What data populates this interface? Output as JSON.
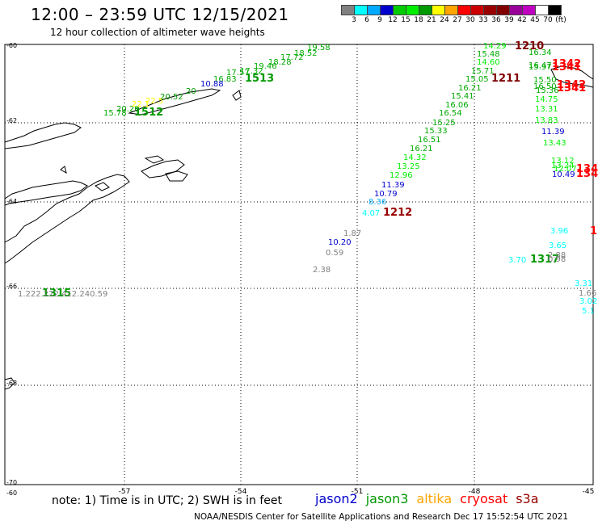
{
  "header": {
    "title": "12:00 – 23:59 UTC 12/15/2021",
    "subtitle": "12 hour collection of altimeter wave heights"
  },
  "color_scale": {
    "colors": [
      "#808080",
      "#00ffff",
      "#00aaff",
      "#0000cc",
      "#00cc00",
      "#00ee00",
      "#009900",
      "#ffff00",
      "#ffa500",
      "#ff0000",
      "#cc0000",
      "#990000",
      "#800000",
      "#990099",
      "#c000c0",
      "#ffffff",
      "#000000"
    ],
    "labels": [
      "3",
      "6",
      "9",
      "12",
      "15",
      "18",
      "21",
      "24",
      "27",
      "30",
      "33",
      "36",
      "39",
      "42",
      "45",
      "70",
      "(ft)"
    ]
  },
  "axes": {
    "lon_labels": [
      "-57",
      "-54",
      "-51",
      "-48",
      "-45"
    ],
    "lat_labels": [
      "-60",
      "-62",
      "-64",
      "-66",
      "-68",
      "-70"
    ],
    "corner_label": "-60"
  },
  "track_labels": [
    {
      "text": "1210",
      "color": "#800000"
    },
    {
      "text": "1211",
      "color": "#800000"
    },
    {
      "text": "1212",
      "color": "#990000"
    },
    {
      "text": "1342",
      "color": "#ff0000"
    },
    {
      "text": "1341",
      "color": "#ff0000"
    },
    {
      "text": "1342",
      "color": "#ff0000"
    },
    {
      "text": "1341",
      "color": "#ff0000"
    },
    {
      "text": "134",
      "color": "#ff0000"
    },
    {
      "text": "134",
      "color": "#ff0000"
    },
    {
      "text": "1",
      "color": "#ff0000"
    },
    {
      "text": "1513",
      "color": "#009900"
    },
    {
      "text": "1512",
      "color": "#009900"
    },
    {
      "text": "1317",
      "color": "#009900"
    },
    {
      "text": "1315",
      "color": "#009900"
    }
  ],
  "wave_heights": [
    {
      "text": "19.58",
      "color": "#00aa00"
    },
    {
      "text": "18.52",
      "color": "#00aa00"
    },
    {
      "text": "17.72",
      "color": "#00aa00"
    },
    {
      "text": "18.28",
      "color": "#00aa00"
    },
    {
      "text": "19.46",
      "color": "#00aa00"
    },
    {
      "text": "17.32",
      "color": "#00aa00"
    },
    {
      "text": "17.57",
      "color": "#00aa00"
    },
    {
      "text": "16.83",
      "color": "#00aa00"
    },
    {
      "text": "10.88",
      "color": "#0000cc"
    },
    {
      "text": "20",
      "color": "#009900"
    },
    {
      "text": "20.52",
      "color": "#009900"
    },
    {
      "text": "22.5",
      "color": "#ffff00"
    },
    {
      "text": "20.20",
      "color": "#009900"
    },
    {
      "text": "15.78",
      "color": "#00aa00"
    },
    {
      "text": "22.1",
      "color": "#ffff00"
    },
    {
      "text": "14.29",
      "color": "#00ee00"
    },
    {
      "text": "15.48",
      "color": "#00aa00"
    },
    {
      "text": "14.60",
      "color": "#00ee00"
    },
    {
      "text": "15.71",
      "color": "#00aa00"
    },
    {
      "text": "15.05",
      "color": "#00aa00"
    },
    {
      "text": "16.21",
      "color": "#00aa00"
    },
    {
      "text": "15.41",
      "color": "#00aa00"
    },
    {
      "text": "16.06",
      "color": "#00aa00"
    },
    {
      "text": "16.54",
      "color": "#00aa00"
    },
    {
      "text": "15.25",
      "color": "#00aa00"
    },
    {
      "text": "15.33",
      "color": "#00aa00"
    },
    {
      "text": "16.51",
      "color": "#00aa00"
    },
    {
      "text": "16.21",
      "color": "#00aa00"
    },
    {
      "text": "14.32",
      "color": "#00ee00"
    },
    {
      "text": "13.25",
      "color": "#00ee00"
    },
    {
      "text": "12.96",
      "color": "#00ee00"
    },
    {
      "text": "11.39",
      "color": "#0000cc"
    },
    {
      "text": "10.79",
      "color": "#0000cc"
    },
    {
      "text": "8.36",
      "color": "#00aaff"
    },
    {
      "text": "4.07",
      "color": "#00ffff"
    },
    {
      "text": "16.34",
      "color": "#00aa00"
    },
    {
      "text": "16.47",
      "color": "#00aa00"
    },
    {
      "text": "15.97",
      "color": "#00aa00"
    },
    {
      "text": "15.50",
      "color": "#00aa00"
    },
    {
      "text": "16.50",
      "color": "#00aa00"
    },
    {
      "text": "15.36",
      "color": "#00aa00"
    },
    {
      "text": "14.75",
      "color": "#00ee00"
    },
    {
      "text": "13.31",
      "color": "#00ee00"
    },
    {
      "text": "13.83",
      "color": "#00ee00"
    },
    {
      "text": "11.39",
      "color": "#0000cc"
    },
    {
      "text": "13.43",
      "color": "#00ee00"
    },
    {
      "text": "13.12",
      "color": "#00ee00"
    },
    {
      "text": "13.24",
      "color": "#00ee00"
    },
    {
      "text": "12.07",
      "color": "#00ee00"
    },
    {
      "text": "10.49",
      "color": "#0000cc"
    },
    {
      "text": "1.87",
      "color": "#808080"
    },
    {
      "text": "10.20",
      "color": "#0000cc"
    },
    {
      "text": "0.59",
      "color": "#808080"
    },
    {
      "text": "2.38",
      "color": "#808080"
    },
    {
      "text": "3.96",
      "color": "#00ffff"
    },
    {
      "text": "3.65",
      "color": "#00ffff"
    },
    {
      "text": "2.88",
      "color": "#808080"
    },
    {
      "text": "0.98",
      "color": "#808080"
    },
    {
      "text": "3.70",
      "color": "#00ffff"
    },
    {
      "text": "3.31",
      "color": "#00ffff"
    },
    {
      "text": "1.66",
      "color": "#808080"
    },
    {
      "text": "3.02",
      "color": "#00ffff"
    },
    {
      "text": "5.1",
      "color": "#00ffff"
    },
    {
      "text": "1.222.222.412.240.59",
      "color": "#808080"
    }
  ],
  "footer": {
    "note": "note: 1) Time is in UTC; 2) SWH is in feet",
    "credit": "NOAA/NESDIS Center for Satellite Applications and Research    Dec 17 15:52:54 UTC 2021",
    "satellites": [
      {
        "name": "jason2",
        "color": "#0000cc"
      },
      {
        "name": "jason3",
        "color": "#009900"
      },
      {
        "name": "altika",
        "color": "#ffa500"
      },
      {
        "name": "cryosat",
        "color": "#ff0000"
      },
      {
        "name": "s3a",
        "color": "#990000"
      }
    ]
  }
}
